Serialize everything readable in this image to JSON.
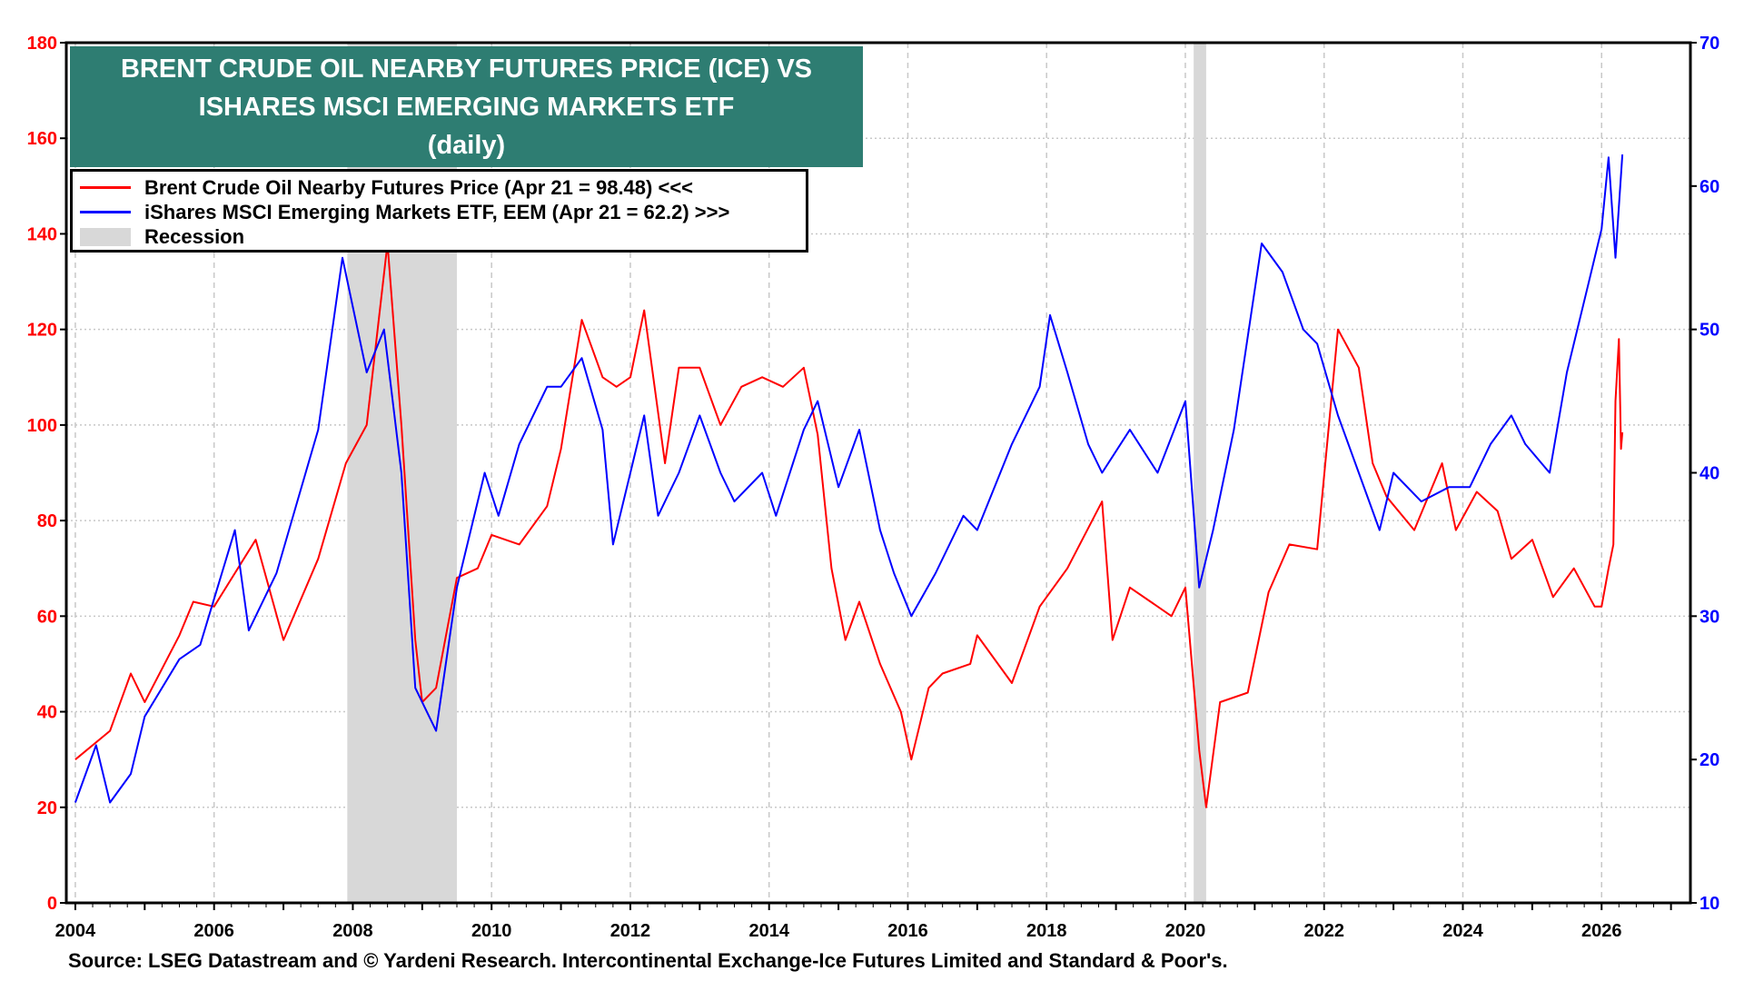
{
  "chart_data": {
    "type": "line",
    "title_lines": [
      "BRENT CRUDE OIL NEARBY FUTURES PRICE (ICE) VS",
      "ISHARES MSCI EMERGING MARKETS ETF",
      "(daily)"
    ],
    "x_ticks": [
      "2004",
      "2006",
      "2008",
      "2010",
      "2012",
      "2014",
      "2016",
      "2018",
      "2020",
      "2022",
      "2024",
      "2026"
    ],
    "xlim": [
      2003.87,
      2027.28
    ],
    "left_axis": {
      "ylim": [
        0,
        180
      ],
      "ticks": [
        "0",
        "20",
        "40",
        "60",
        "80",
        "100",
        "120",
        "140",
        "160",
        "180"
      ],
      "color": "#ff0000"
    },
    "right_axis": {
      "ylim": [
        10,
        70
      ],
      "ticks": [
        "10",
        "20",
        "30",
        "40",
        "50",
        "60",
        "70"
      ],
      "color": "#0000ff"
    },
    "grid": true,
    "legend_placement": "top-left",
    "recessions": [
      [
        2007.92,
        2009.5
      ],
      [
        2020.12,
        2020.3
      ]
    ],
    "series": [
      {
        "name": "Brent Crude Oil Nearby Futures Price (Apr 21 = 98.48) <<<",
        "axis": "left",
        "color": "#ff0000",
        "x": [
          2004.0,
          2004.5,
          2004.8,
          2005.0,
          2005.5,
          2005.7,
          2006.0,
          2006.6,
          2007.0,
          2007.5,
          2007.9,
          2008.2,
          2008.5,
          2008.7,
          2008.9,
          2009.0,
          2009.2,
          2009.5,
          2009.8,
          2010.0,
          2010.4,
          2010.8,
          2011.0,
          2011.3,
          2011.6,
          2011.8,
          2012.0,
          2012.2,
          2012.5,
          2012.7,
          2013.0,
          2013.3,
          2013.6,
          2013.9,
          2014.2,
          2014.5,
          2014.7,
          2014.9,
          2015.1,
          2015.3,
          2015.6,
          2015.9,
          2016.05,
          2016.3,
          2016.5,
          2016.9,
          2017.0,
          2017.5,
          2017.9,
          2018.3,
          2018.8,
          2018.95,
          2019.2,
          2019.5,
          2019.8,
          2020.0,
          2020.2,
          2020.3,
          2020.5,
          2020.9,
          2021.2,
          2021.5,
          2021.9,
          2022.2,
          2022.5,
          2022.7,
          2022.9,
          2023.3,
          2023.7,
          2023.9,
          2024.2,
          2024.5,
          2024.7,
          2025.0,
          2025.3,
          2025.6,
          2025.9,
          2026.0,
          2026.1,
          2026.17,
          2026.2,
          2026.25,
          2026.28,
          2026.3
        ],
        "y": [
          30,
          36,
          48,
          42,
          56,
          63,
          62,
          76,
          55,
          72,
          92,
          100,
          138,
          100,
          55,
          42,
          45,
          68,
          70,
          77,
          75,
          83,
          95,
          122,
          110,
          108,
          110,
          124,
          92,
          112,
          112,
          100,
          108,
          110,
          108,
          112,
          98,
          70,
          55,
          63,
          50,
          40,
          30,
          45,
          48,
          50,
          56,
          46,
          62,
          70,
          84,
          55,
          66,
          63,
          60,
          66,
          32,
          20,
          42,
          44,
          65,
          75,
          74,
          120,
          112,
          92,
          85,
          78,
          92,
          78,
          86,
          82,
          72,
          76,
          64,
          70,
          62,
          62,
          70,
          75,
          105,
          118,
          95,
          98.48
        ]
      },
      {
        "name": "iShares MSCI Emerging Markets ETF, EEM (Apr 21 = 62.2) >>>",
        "axis": "right",
        "color": "#0000ff",
        "x": [
          2004.0,
          2004.3,
          2004.5,
          2004.8,
          2005.0,
          2005.5,
          2005.8,
          2006.3,
          2006.5,
          2006.9,
          2007.2,
          2007.5,
          2007.85,
          2008.2,
          2008.45,
          2008.7,
          2008.9,
          2009.2,
          2009.5,
          2009.9,
          2010.1,
          2010.4,
          2010.8,
          2011.0,
          2011.3,
          2011.6,
          2011.75,
          2012.0,
          2012.2,
          2012.4,
          2012.7,
          2013.0,
          2013.3,
          2013.5,
          2013.9,
          2014.1,
          2014.5,
          2014.7,
          2015.0,
          2015.3,
          2015.6,
          2015.8,
          2016.05,
          2016.4,
          2016.8,
          2017.0,
          2017.5,
          2017.9,
          2018.05,
          2018.3,
          2018.6,
          2018.8,
          2019.2,
          2019.6,
          2020.0,
          2020.2,
          2020.4,
          2020.7,
          2021.1,
          2021.4,
          2021.7,
          2021.9,
          2022.2,
          2022.5,
          2022.8,
          2023.0,
          2023.4,
          2023.8,
          2024.1,
          2024.4,
          2024.7,
          2024.9,
          2025.25,
          2025.5,
          2025.8,
          2026.0,
          2026.1,
          2026.2,
          2026.3
        ],
        "y": [
          17,
          21,
          17,
          19,
          23,
          27,
          28,
          36,
          29,
          33,
          38,
          43,
          55,
          47,
          50,
          40,
          25,
          22,
          32,
          40,
          37,
          42,
          46,
          46,
          48,
          43,
          35,
          40,
          44,
          37,
          40,
          44,
          40,
          38,
          40,
          37,
          43,
          45,
          39,
          43,
          36,
          33,
          30,
          33,
          37,
          36,
          42,
          46,
          51,
          47,
          42,
          40,
          43,
          40,
          45,
          32,
          36,
          43,
          56,
          54,
          50,
          49,
          44,
          40,
          36,
          40,
          38,
          39,
          39,
          42,
          44,
          42,
          40,
          47,
          53,
          57,
          62,
          55,
          62.2
        ]
      }
    ],
    "recession_label": "Recession",
    "source": "Source: LSEG Datastream and © Yardeni Research. Intercontinental Exchange-Ice Futures Limited and Standard & Poor's."
  }
}
